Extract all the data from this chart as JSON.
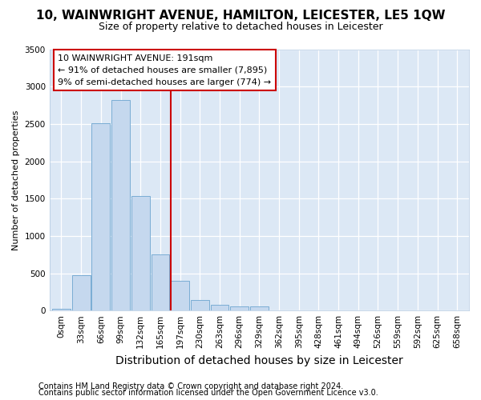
{
  "title": "10, WAINWRIGHT AVENUE, HAMILTON, LEICESTER, LE5 1QW",
  "subtitle": "Size of property relative to detached houses in Leicester",
  "xlabel": "Distribution of detached houses by size in Leicester",
  "ylabel": "Number of detached properties",
  "bar_labels": [
    "0sqm",
    "33sqm",
    "66sqm",
    "99sqm",
    "132sqm",
    "165sqm",
    "197sqm",
    "230sqm",
    "263sqm",
    "296sqm",
    "329sqm",
    "362sqm",
    "395sqm",
    "428sqm",
    "461sqm",
    "494sqm",
    "526sqm",
    "559sqm",
    "592sqm",
    "625sqm",
    "658sqm"
  ],
  "bar_values": [
    25,
    470,
    2510,
    2820,
    1530,
    750,
    395,
    140,
    75,
    55,
    55,
    0,
    0,
    0,
    0,
    0,
    0,
    0,
    0,
    0,
    0
  ],
  "bar_color": "#c5d8ee",
  "bar_edge_color": "#7aadd4",
  "vline_x": 6.0,
  "vline_color": "#cc0000",
  "annotation_text": "10 WAINWRIGHT AVENUE: 191sqm\n← 91% of detached houses are smaller (7,895)\n9% of semi-detached houses are larger (774) →",
  "annotation_box_color": "#ffffff",
  "annotation_box_edge_color": "#cc0000",
  "ylim": [
    0,
    3500
  ],
  "yticks": [
    0,
    500,
    1000,
    1500,
    2000,
    2500,
    3000,
    3500
  ],
  "footer1": "Contains HM Land Registry data © Crown copyright and database right 2024.",
  "footer2": "Contains public sector information licensed under the Open Government Licence v3.0.",
  "fig_bg_color": "#ffffff",
  "plot_bg_color": "#dce8f5",
  "title_fontsize": 11,
  "subtitle_fontsize": 9,
  "xlabel_fontsize": 10,
  "ylabel_fontsize": 8,
  "tick_fontsize": 7.5,
  "footer_fontsize": 7,
  "annotation_fontsize": 8
}
